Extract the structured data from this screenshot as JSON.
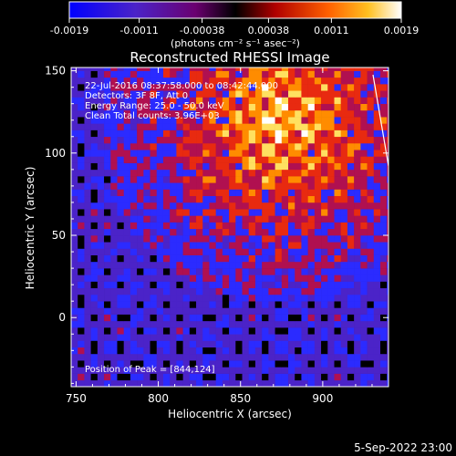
{
  "chart_data": {
    "type": "heatmap",
    "title": "Reconstructed RHESSI Image",
    "xlabel": "Heliocentric X (arcsec)",
    "ylabel": "Heliocentric Y (arcsec)",
    "xlim": [
      747,
      940
    ],
    "ylim": [
      -42,
      152
    ],
    "x_ticks": [
      750,
      800,
      850,
      900
    ],
    "y_ticks": [
      0,
      50,
      100,
      150
    ],
    "colorbar": {
      "ticks": [
        -0.0019,
        -0.0011,
        -0.00038,
        0.00038,
        0.0011,
        0.0019
      ],
      "tick_labels": [
        "-0.0019",
        "-0.0011",
        "-0.00038",
        "0.00038",
        "0.0011",
        "0.0019"
      ],
      "unit_label": "(photons cm⁻² s⁻¹ asec⁻²)"
    },
    "annotations": [
      "22-Jul-2016 08:37:58.000 to 08:42:44.000",
      "Detectors: 3F 8F, Att 0",
      "Energy Range: 25.0 - 50.0 keV",
      "Clean      Total counts: 3.96E+03"
    ],
    "peak_label": "Position of Peak = [844,124]",
    "peak_position": [
      844,
      124
    ],
    "source_centroid": [
      873,
      117
    ],
    "colormap": [
      "#000000",
      "#4b23c8",
      "#2b2bff",
      "#b01050",
      "#e82a10",
      "#ff8c00",
      "#ffe060",
      "#ffffff"
    ]
  },
  "footer": {
    "timestamp": "5-Sep-2022 23:00"
  }
}
